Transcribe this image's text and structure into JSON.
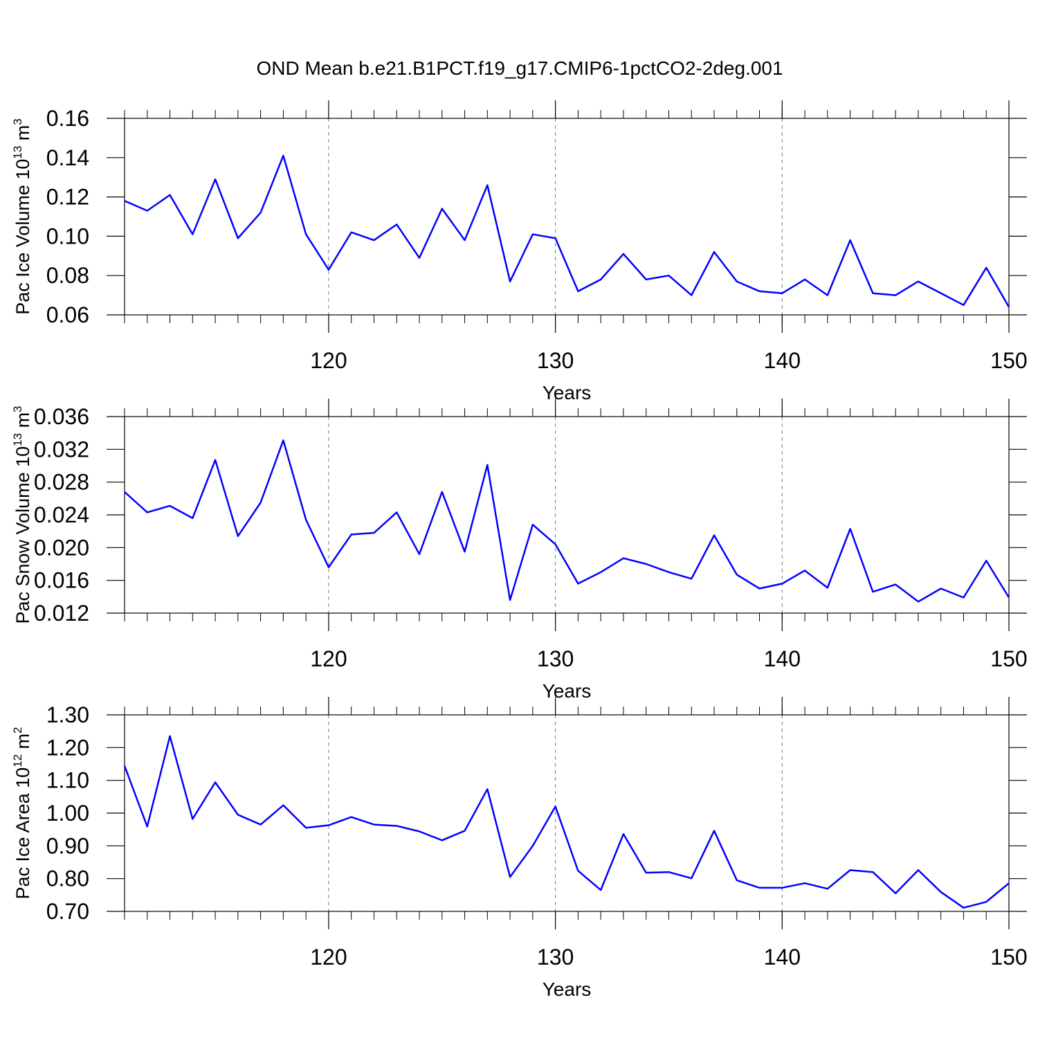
{
  "title": "OND Mean b.e21.B1PCT.f19_g17.CMIP6-1pctCO2-2deg.001",
  "chart_data": [
    {
      "type": "line",
      "xlabel": "Years",
      "ylabel": [
        "Pac Ice Volume 10",
        "13",
        " m",
        "3"
      ],
      "x": [
        111,
        112,
        113,
        114,
        115,
        116,
        117,
        118,
        119,
        120,
        121,
        122,
        123,
        124,
        125,
        126,
        127,
        128,
        129,
        130,
        131,
        132,
        133,
        134,
        135,
        136,
        137,
        138,
        139,
        140,
        141,
        142,
        143,
        144,
        145,
        146,
        147,
        148,
        149,
        150
      ],
      "series": [
        {
          "color": "#0000ff",
          "values": [
            0.118,
            0.113,
            0.121,
            0.101,
            0.129,
            0.099,
            0.112,
            0.141,
            0.101,
            0.083,
            0.102,
            0.098,
            0.106,
            0.089,
            0.114,
            0.098,
            0.126,
            0.077,
            0.101,
            0.099,
            0.072,
            0.078,
            0.091,
            0.078,
            0.08,
            0.07,
            0.092,
            0.077,
            0.072,
            0.071,
            0.078,
            0.07,
            0.098,
            0.071,
            0.07,
            0.077,
            0.071,
            0.065,
            0.084,
            0.064
          ]
        }
      ],
      "xlim": [
        111,
        150
      ],
      "xticks": [
        120,
        130,
        140,
        150
      ],
      "ylim": [
        0.06,
        0.16
      ],
      "yticks": [
        0.06,
        0.08,
        {
          "value": 0.1,
          "label": "0.10"
        },
        0.12,
        0.14,
        0.16
      ],
      "grid": "x-dashed"
    },
    {
      "type": "line",
      "xlabel": "Years",
      "ylabel": [
        "Pac Snow Volume 10",
        "13",
        " m",
        "3"
      ],
      "x": [
        111,
        112,
        113,
        114,
        115,
        116,
        117,
        118,
        119,
        120,
        121,
        122,
        123,
        124,
        125,
        126,
        127,
        128,
        129,
        130,
        131,
        132,
        133,
        134,
        135,
        136,
        137,
        138,
        139,
        140,
        141,
        142,
        143,
        144,
        145,
        146,
        147,
        148,
        149,
        150
      ],
      "series": [
        {
          "color": "#0000ff",
          "values": [
            0.0268,
            0.0243,
            0.0251,
            0.0236,
            0.0307,
            0.0214,
            0.0255,
            0.0331,
            0.0234,
            0.0176,
            0.0216,
            0.0218,
            0.0243,
            0.0192,
            0.0268,
            0.0195,
            0.0301,
            0.0136,
            0.0228,
            0.0204,
            0.0156,
            0.017,
            0.0187,
            0.018,
            0.017,
            0.0162,
            0.0215,
            0.0167,
            0.015,
            0.0156,
            0.0172,
            0.0151,
            0.0223,
            0.0146,
            0.0155,
            0.0134,
            0.015,
            0.0139,
            0.0184,
            0.0139
          ]
        }
      ],
      "xlim": [
        111,
        150
      ],
      "xticks": [
        120,
        130,
        140,
        150
      ],
      "ylim": [
        0.012,
        0.036
      ],
      "yticks": [
        0.012,
        0.016,
        {
          "value": 0.02,
          "label": "0.020"
        },
        0.024,
        0.028,
        0.032,
        0.036
      ],
      "grid": "x-dashed"
    },
    {
      "type": "line",
      "xlabel": "Years",
      "ylabel": [
        "Pac Ice Area 10",
        "12",
        " m",
        "2"
      ],
      "x": [
        111,
        112,
        113,
        114,
        115,
        116,
        117,
        118,
        119,
        120,
        121,
        122,
        123,
        124,
        125,
        126,
        127,
        128,
        129,
        130,
        131,
        132,
        133,
        134,
        135,
        136,
        137,
        138,
        139,
        140,
        141,
        142,
        143,
        144,
        145,
        146,
        147,
        148,
        149,
        150
      ],
      "series": [
        {
          "color": "#0000ff",
          "values": [
            1.144,
            0.959,
            1.235,
            0.982,
            1.094,
            0.995,
            0.965,
            1.024,
            0.955,
            0.963,
            0.988,
            0.965,
            0.961,
            0.944,
            0.917,
            0.946,
            1.073,
            0.805,
            0.9,
            1.02,
            0.824,
            0.765,
            0.936,
            0.818,
            0.82,
            0.801,
            0.946,
            0.795,
            0.772,
            0.772,
            0.786,
            0.769,
            0.826,
            0.82,
            0.755,
            0.826,
            0.759,
            0.711,
            0.729,
            0.786
          ]
        }
      ],
      "xlim": [
        111,
        150
      ],
      "xticks": [
        120,
        130,
        140,
        150
      ],
      "ylim": [
        0.7,
        1.3
      ],
      "yticks": [
        {
          "value": 0.7,
          "label": "0.70"
        },
        {
          "value": 0.8,
          "label": "0.80"
        },
        {
          "value": 0.9,
          "label": "0.90"
        },
        {
          "value": 1.0,
          "label": "1.00"
        },
        {
          "value": 1.1,
          "label": "1.10"
        },
        {
          "value": 1.2,
          "label": "1.20"
        },
        {
          "value": 1.3,
          "label": "1.30"
        }
      ],
      "grid": "x-dashed"
    }
  ]
}
